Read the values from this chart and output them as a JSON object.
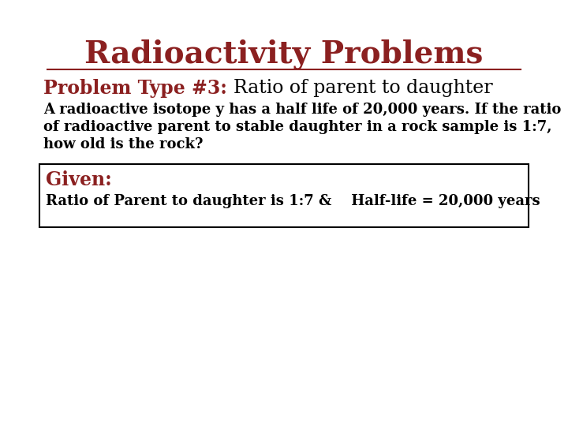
{
  "title": "Radioactivity Problems",
  "title_color": "#8B2020",
  "title_fontsize": 28,
  "subtitle_bold": "Problem Type #3: ",
  "subtitle_regular": "Ratio of parent to daughter",
  "subtitle_color": "#8B2020",
  "subtitle_fontsize": 17,
  "body_text_line1": "A radioactive isotope y has a half life of 20,000 years. If the ratio",
  "body_text_line2": "of radioactive parent to stable daughter in a rock sample is 1:7,",
  "body_text_line3": "how old is the rock?",
  "body_fontsize": 13,
  "body_color": "#000000",
  "given_label": "Given:",
  "given_label_color": "#8B2020",
  "given_label_fontsize": 17,
  "given_text": "Ratio of Parent to daughter is 1:7 &    Half-life = 20,000 years",
  "given_text_fontsize": 13,
  "given_text_color": "#000000",
  "background_color": "#ffffff",
  "box_edge_color": "#000000"
}
